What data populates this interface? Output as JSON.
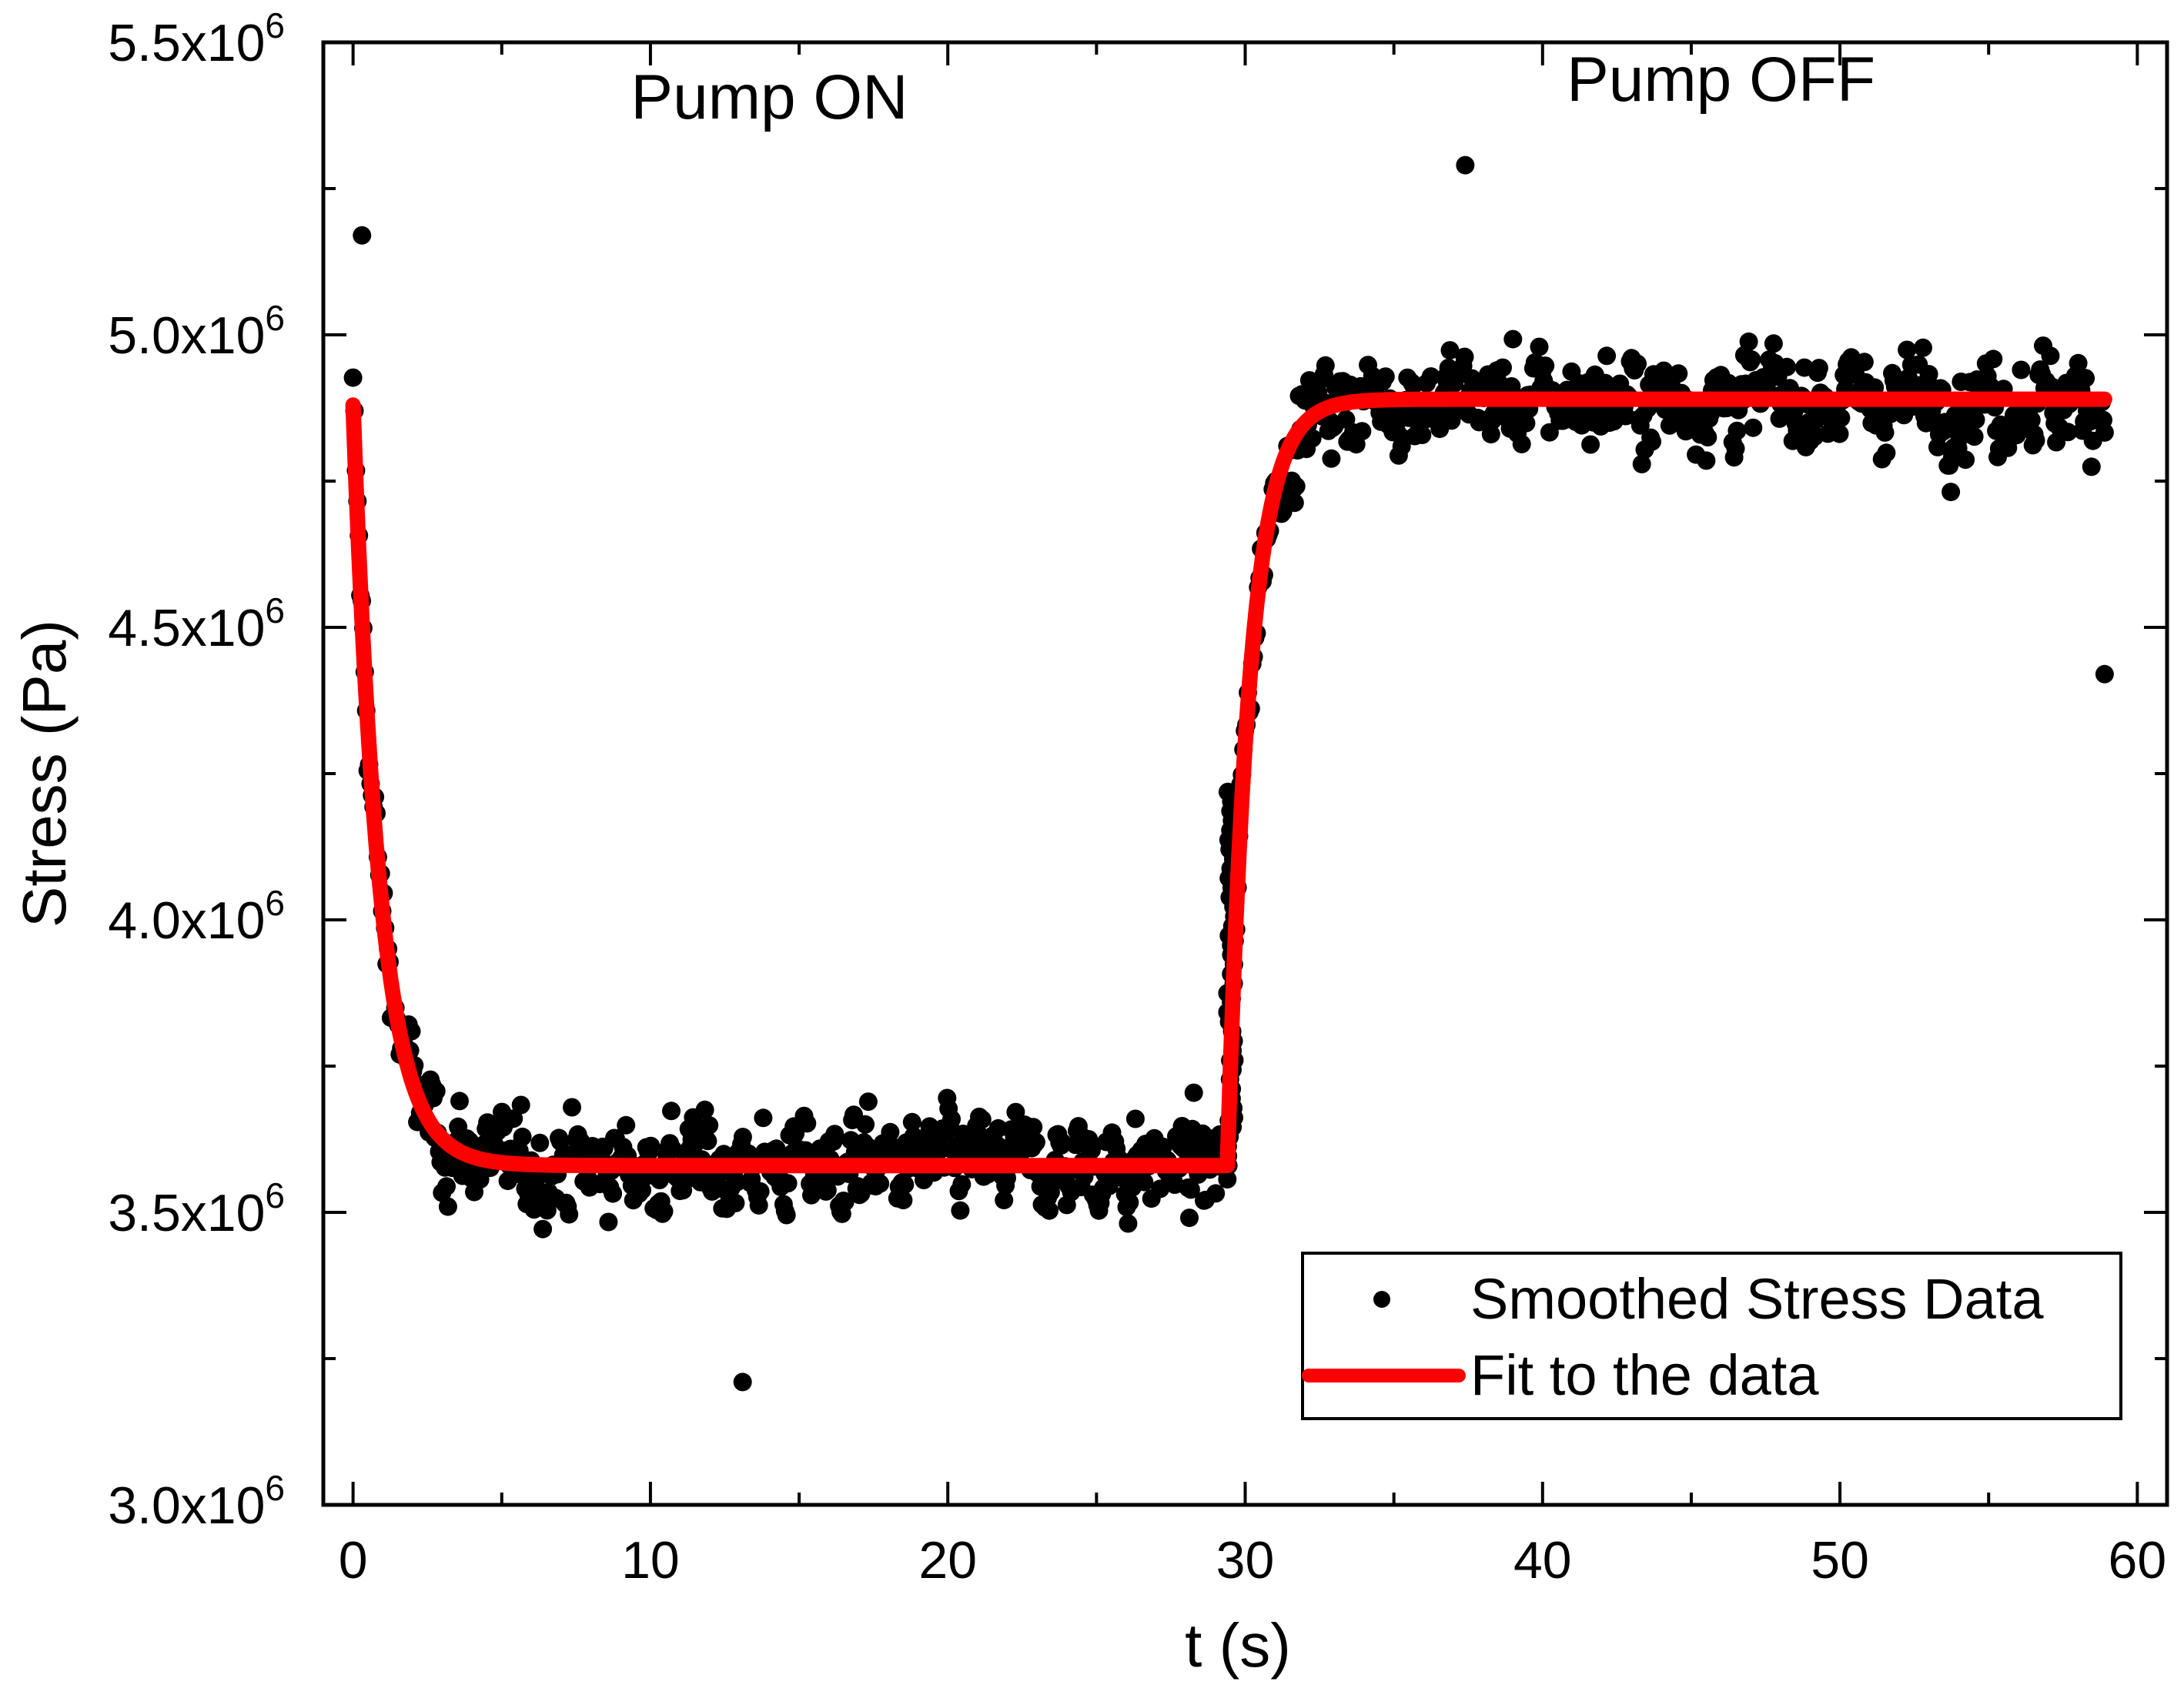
{
  "chart_data": {
    "type": "scatter",
    "title": "",
    "xlabel": "t (s)",
    "ylabel": "Stress (Pa)",
    "xlim": [
      -1,
      61
    ],
    "ylim": [
      3000000,
      5500000
    ],
    "x_ticks": [
      0,
      10,
      20,
      30,
      40,
      50,
      60
    ],
    "x_tick_labels": [
      "0",
      "10",
      "20",
      "30",
      "40",
      "50",
      "60"
    ],
    "y_ticks": [
      3000000,
      3500000,
      4000000,
      4500000,
      5000000,
      5500000
    ],
    "y_tick_labels": [
      {
        "mantissa": "3.0x10",
        "exp": "6"
      },
      {
        "mantissa": "3.5x10",
        "exp": "6"
      },
      {
        "mantissa": "4.0x10",
        "exp": "6"
      },
      {
        "mantissa": "4.5x10",
        "exp": "6"
      },
      {
        "mantissa": "5.0x10",
        "exp": "6"
      },
      {
        "mantissa": "5.5x10",
        "exp": "6"
      }
    ],
    "grid": false,
    "legend_position": "bottom-right",
    "annotations": [
      {
        "text": "Pump ON",
        "x": 14,
        "y": 5370000
      },
      {
        "text": "Pump OFF",
        "x": 46,
        "y": 5400000
      }
    ],
    "series": [
      {
        "name": "Smoothed Stress Data",
        "kind": "scatter",
        "color": "#000000",
        "segments": [
          {
            "t_start": 0.0,
            "t_end": 29.4,
            "y_start": 4880000,
            "y_plateau": 3580000,
            "tau": 0.9,
            "noise": 160000,
            "n": 600
          },
          {
            "t_start": 29.4,
            "t_end": 58.9,
            "y_start": 3580000,
            "y_plateau": 4890000,
            "tau": 0.75,
            "noise": 160000,
            "n": 600
          }
        ],
        "outliers": [
          {
            "x": 0.3,
            "y": 5170000
          },
          {
            "x": 58.9,
            "y": 4420000
          },
          {
            "x": 37.4,
            "y": 5290000
          },
          {
            "x": 13.1,
            "y": 3210000
          }
        ]
      },
      {
        "name": "Fit to the data",
        "kind": "line",
        "color": "#ff0000",
        "segments": [
          {
            "t_start": 0.0,
            "t_end": 29.4,
            "y_start": 4880000,
            "y_plateau": 3580000,
            "tau": 0.9
          },
          {
            "t_start": 29.4,
            "t_end": 58.9,
            "y_start": 3580000,
            "y_plateau": 4890000,
            "tau": 0.75
          }
        ]
      }
    ]
  }
}
